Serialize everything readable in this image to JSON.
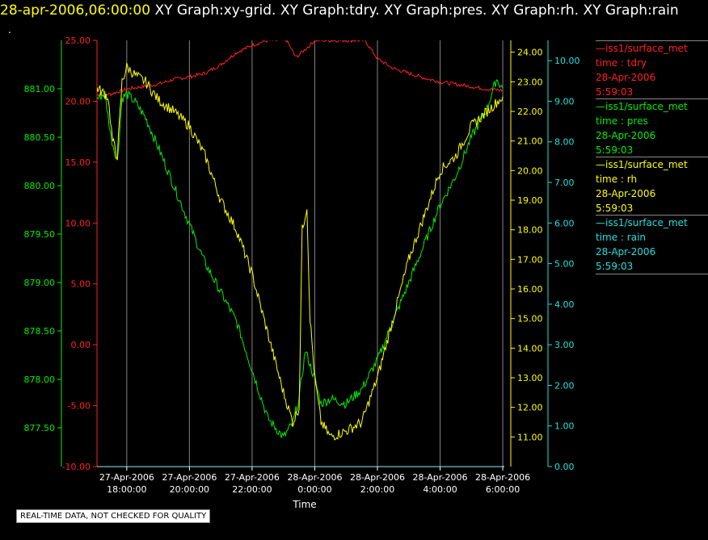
{
  "header": {
    "timestamp": "28-apr-2006,06:00:00",
    "graphs": [
      "XY Graph:xy-grid.",
      "XY Graph:tdry.",
      "XY Graph:pres.",
      "XY Graph:rh.",
      "XY Graph:rain"
    ],
    "dot": "."
  },
  "notice": "REAL-TIME DATA, NOT CHECKED FOR QUALITY",
  "colors": {
    "tdry": "#ff2020",
    "pres": "#00ee00",
    "rh": "#ffff00",
    "rain": "#20e0e0",
    "grid": "#b0b0b0",
    "text": "#ffffff"
  },
  "legend": [
    {
      "key": "tdry",
      "color": "#ff2020",
      "line1": "iss1/surface_met",
      "line2": "time : tdry",
      "line3": "28-Apr-2006",
      "line4": "5:59:03"
    },
    {
      "key": "pres",
      "color": "#00ee00",
      "line1": "iss1/surface_met",
      "line2": "time : pres",
      "line3": "28-Apr-2006",
      "line4": "5:59:03"
    },
    {
      "key": "rh",
      "color": "#ffff00",
      "line1": "iss1/surface_met",
      "line2": "time : rh",
      "line3": "28-Apr-2006",
      "line4": "5:59:03"
    },
    {
      "key": "rain",
      "color": "#20e0e0",
      "line1": "iss1/surface_met",
      "line2": "time : rain",
      "line3": "28-Apr-2006",
      "line4": "5:59:03"
    }
  ],
  "chart_data": {
    "type": "line",
    "xlabel": "Time",
    "x_ticks": [
      {
        "hours": 0,
        "date": "27-Apr-2006",
        "time": "18:00:00"
      },
      {
        "hours": 2,
        "date": "27-Apr-2006",
        "time": "20:00:00"
      },
      {
        "hours": 4,
        "date": "27-Apr-2006",
        "time": "22:00:00"
      },
      {
        "hours": 6,
        "date": "28-Apr-2006",
        "time": "0:00:00"
      },
      {
        "hours": 8,
        "date": "28-Apr-2006",
        "time": "2:00:00"
      },
      {
        "hours": 10,
        "date": "28-Apr-2006",
        "time": "4:00:00"
      },
      {
        "hours": 12,
        "date": "28-Apr-2006",
        "time": "6:00:00"
      }
    ],
    "xlim": [
      -0.95,
      12.05
    ],
    "grid": "vertical",
    "axes": {
      "tdry": {
        "ylim": [
          -10,
          25
        ],
        "ticks": [
          "-10.00",
          "-5.00",
          "0.00",
          "5.00",
          "10.00",
          "15.00",
          "20.00",
          "25.00"
        ]
      },
      "pres": {
        "ylim": [
          877.1,
          881.5
        ],
        "ticks": [
          "877.50",
          "878.00",
          "878.50",
          "879.00",
          "879.50",
          "880.00",
          "880.50",
          "881.00"
        ]
      },
      "rh": {
        "ylim": [
          10.0,
          24.4
        ],
        "ticks": [
          "11.00",
          "12.00",
          "13.00",
          "14.00",
          "15.00",
          "16.00",
          "17.00",
          "18.00",
          "19.00",
          "20.00",
          "21.00",
          "22.00",
          "23.00",
          "24.00"
        ]
      },
      "rain": {
        "ylim": [
          0,
          10.5
        ],
        "ticks": [
          "0.00",
          "1.00",
          "2.00",
          "3.00",
          "4.00",
          "5.00",
          "6.00",
          "7.00",
          "8.00",
          "9.00",
          "10.00"
        ]
      }
    },
    "series": [
      {
        "name": "tdry",
        "axis": "tdry",
        "points": [
          [
            -0.95,
            20.5
          ],
          [
            -0.5,
            20.6
          ],
          [
            0,
            21.0
          ],
          [
            0.5,
            21.2
          ],
          [
            1,
            21.4
          ],
          [
            1.5,
            21.8
          ],
          [
            2,
            22.0
          ],
          [
            2.5,
            22.3
          ],
          [
            3,
            23.0
          ],
          [
            3.5,
            24.0
          ],
          [
            4,
            24.6
          ],
          [
            4.5,
            25.0
          ],
          [
            5.1,
            25.0
          ],
          [
            5.4,
            23.6
          ],
          [
            5.8,
            24.5
          ],
          [
            6.0,
            25.0
          ],
          [
            7.6,
            25.0
          ],
          [
            8,
            23.5
          ],
          [
            8.5,
            22.7
          ],
          [
            9,
            22.3
          ],
          [
            9.5,
            21.9
          ],
          [
            10,
            21.6
          ],
          [
            10.5,
            21.4
          ],
          [
            11,
            21.2
          ],
          [
            11.5,
            21.0
          ],
          [
            12,
            20.9
          ]
        ]
      },
      {
        "name": "pres",
        "axis": "pres",
        "points": [
          [
            -0.95,
            880.9
          ],
          [
            -0.7,
            880.95
          ],
          [
            -0.5,
            880.5
          ],
          [
            -0.3,
            880.25
          ],
          [
            -0.15,
            880.9
          ],
          [
            0,
            880.95
          ],
          [
            0.3,
            880.85
          ],
          [
            0.6,
            880.7
          ],
          [
            1,
            880.4
          ],
          [
            1.5,
            880.0
          ],
          [
            2,
            879.6
          ],
          [
            2.5,
            879.2
          ],
          [
            3,
            878.9
          ],
          [
            3.5,
            878.6
          ],
          [
            4,
            878.1
          ],
          [
            4.5,
            877.6
          ],
          [
            5,
            877.4
          ],
          [
            5.3,
            877.55
          ],
          [
            5.5,
            877.8
          ],
          [
            5.7,
            878.3
          ],
          [
            6.0,
            878.0
          ],
          [
            6.2,
            877.75
          ],
          [
            6.5,
            877.8
          ],
          [
            7,
            877.75
          ],
          [
            7.5,
            877.9
          ],
          [
            8,
            878.2
          ],
          [
            8.5,
            878.6
          ],
          [
            9,
            879.0
          ],
          [
            9.5,
            879.4
          ],
          [
            10,
            879.8
          ],
          [
            10.5,
            880.1
          ],
          [
            11,
            880.5
          ],
          [
            11.5,
            880.8
          ],
          [
            11.8,
            881.1
          ],
          [
            12,
            881.0
          ]
        ]
      },
      {
        "name": "rh",
        "axis": "rh",
        "points": [
          [
            -0.95,
            22.8
          ],
          [
            -0.6,
            22.5
          ],
          [
            -0.45,
            21.0
          ],
          [
            -0.3,
            20.5
          ],
          [
            -0.15,
            23.0
          ],
          [
            0,
            23.5
          ],
          [
            0.3,
            23.2
          ],
          [
            0.6,
            23.0
          ],
          [
            1,
            22.4
          ],
          [
            1.5,
            22.0
          ],
          [
            2,
            21.5
          ],
          [
            2.5,
            20.5
          ],
          [
            3,
            19.0
          ],
          [
            3.5,
            18.0
          ],
          [
            4,
            16.5
          ],
          [
            4.5,
            14.5
          ],
          [
            5,
            12.5
          ],
          [
            5.3,
            11.5
          ],
          [
            5.5,
            12.0
          ],
          [
            5.6,
            18.0
          ],
          [
            5.75,
            18.8
          ],
          [
            5.85,
            15.0
          ],
          [
            6.0,
            13.0
          ],
          [
            6.2,
            11.5
          ],
          [
            6.5,
            11.0
          ],
          [
            7,
            11.2
          ],
          [
            7.5,
            11.5
          ],
          [
            8,
            13.0
          ],
          [
            8.5,
            15.0
          ],
          [
            9,
            17.0
          ],
          [
            9.5,
            18.5
          ],
          [
            10,
            20.0
          ],
          [
            10.5,
            20.5
          ],
          [
            11,
            21.5
          ],
          [
            11.5,
            22.0
          ],
          [
            12,
            22.5
          ]
        ]
      },
      {
        "name": "rain",
        "axis": "rain",
        "points": [
          [
            -0.95,
            0.0
          ],
          [
            12,
            0.0
          ]
        ]
      }
    ]
  }
}
